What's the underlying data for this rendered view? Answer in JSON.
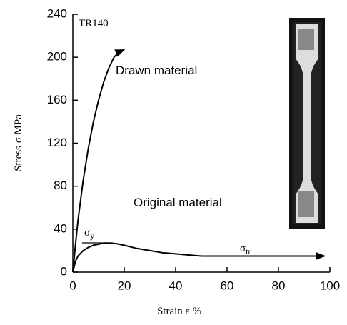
{
  "chart_data": {
    "type": "line",
    "xlabel": "Strain ε  %",
    "ylabel": "Stress σ  MPa",
    "xlim": [
      0,
      100
    ],
    "xticks": [
      0,
      20,
      40,
      60,
      80,
      100
    ],
    "ylim": [
      0,
      240
    ],
    "yticks": [
      0,
      40,
      80,
      120,
      160,
      200,
      240
    ],
    "series": [
      {
        "name": "Drawn material",
        "color": "#000000",
        "x": [
          0,
          1,
          2,
          4,
          6,
          8,
          10,
          12,
          14,
          16,
          18,
          20
        ],
        "values": [
          0,
          25,
          48,
          85,
          115,
          140,
          160,
          177,
          190,
          200,
          205,
          207
        ]
      },
      {
        "name": "Original material",
        "color": "#000000",
        "x": [
          0,
          1,
          2,
          4,
          6,
          8,
          10,
          12,
          14,
          17,
          20,
          25,
          30,
          35,
          40,
          50,
          60,
          70,
          80,
          90,
          98
        ],
        "values": [
          0,
          10,
          15,
          20,
          23,
          25,
          26,
          27,
          27,
          26.5,
          25,
          22,
          20,
          18,
          17,
          15,
          15,
          15,
          15,
          15,
          15
        ]
      }
    ],
    "annotations": [
      "TR140"
    ],
    "sigma_y": {
      "symbol": "σ",
      "subscript": "y"
    },
    "sigma_tr": {
      "symbol": "σ",
      "subscript": "tr"
    }
  }
}
